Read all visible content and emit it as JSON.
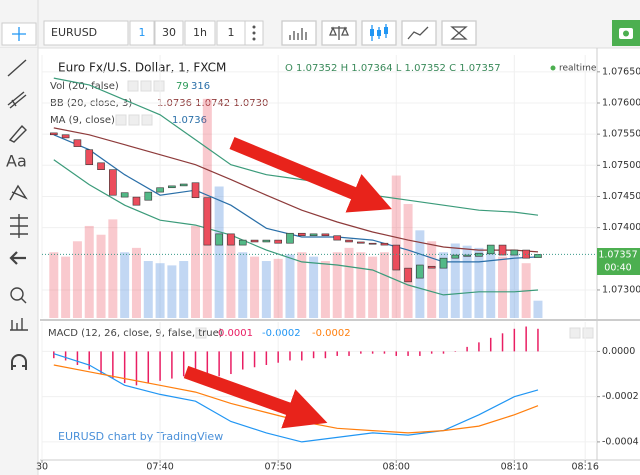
{
  "toolbar": {
    "symbol": "EURUSD",
    "intervals": [
      "1",
      "30",
      "1h",
      "1"
    ]
  },
  "toolbar_left": {
    "text_tool": "Aa"
  },
  "legend": {
    "title": "Euro Fx/U.S. Dollar, 1, FXCM",
    "ohlc": "O 1.07352 H 1.07364 L 1.07352 C 1.07357",
    "status": "realtime",
    "vol_name": "Vol (20, false)",
    "vol_value": "79",
    "vol_ma": "316",
    "bb_name": "BB (20, close, 3)",
    "bb_values": "1.0736 1.0742 1.0730",
    "ma_name": "MA (9, close)",
    "ma_value": "1.0736",
    "macd_name": "MACD (12, 26, close, 9, false, true)",
    "macd_hist": "0.0001",
    "macd_value": "-0.0002",
    "macd_signal": "-0.0002"
  },
  "watermark": "EURUSD chart by TradingView",
  "last_price": {
    "price": "1.07357",
    "countdown": "00:40"
  },
  "chart_data": [
    {
      "type": "candlestick",
      "up_color": "#53b987",
      "down_color": "#eb4d5c",
      "x": [
        "07:31",
        "07:32",
        "07:33",
        "07:34",
        "07:35",
        "07:36",
        "07:37",
        "07:38",
        "07:39",
        "07:40",
        "07:41",
        "07:42",
        "07:43",
        "07:44",
        "07:45",
        "07:46",
        "07:47",
        "07:48",
        "07:49",
        "07:50",
        "07:51",
        "07:52",
        "07:53",
        "07:54",
        "07:55",
        "07:56",
        "07:57",
        "07:58",
        "07:59",
        "08:00",
        "08:01",
        "08:02",
        "08:03",
        "08:04",
        "08:05",
        "08:06",
        "08:07",
        "08:08",
        "08:09",
        "08:10",
        "08:11",
        "08:12"
      ],
      "open": [
        1.07552,
        1.07549,
        1.07541,
        1.07525,
        1.07504,
        1.07493,
        1.07449,
        1.07449,
        1.07444,
        1.07457,
        1.07464,
        1.07467,
        1.07472,
        1.07448,
        1.07372,
        1.0739,
        1.07372,
        1.0738,
        1.07377,
        1.0738,
        1.07375,
        1.07391,
        1.07387,
        1.0739,
        1.07387,
        1.0738,
        1.07377,
        1.07375,
        1.07375,
        1.07372,
        1.07335,
        1.07319,
        1.07338,
        1.07335,
        1.07351,
        1.07354,
        1.07354,
        1.07358,
        1.07372,
        1.07356,
        1.07364,
        1.07352
      ],
      "close": [
        1.07549,
        1.07544,
        1.0753,
        1.07501,
        1.07493,
        1.07452,
        1.07456,
        1.07436,
        1.07457,
        1.07464,
        1.07467,
        1.0747,
        1.07448,
        1.07372,
        1.0739,
        1.07372,
        1.0738,
        1.07377,
        1.0738,
        1.07375,
        1.07391,
        1.07387,
        1.0739,
        1.07387,
        1.0738,
        1.07377,
        1.07375,
        1.07374,
        1.07372,
        1.07332,
        1.07313,
        1.0734,
        1.07335,
        1.07351,
        1.07356,
        1.07356,
        1.07359,
        1.07372,
        1.07356,
        1.07364,
        1.07351,
        1.07357
      ],
      "volume": {
        "values": [
          300,
          280,
          350,
          420,
          380,
          450,
          300,
          320,
          260,
          250,
          240,
          260,
          420,
          1000,
          600,
          380,
          300,
          280,
          260,
          270,
          290,
          300,
          280,
          260,
          300,
          320,
          300,
          280,
          300,
          650,
          520,
          400,
          350,
          300,
          340,
          330,
          320,
          300,
          280,
          290,
          250,
          79
        ],
        "ylim": [
          0,
          1200
        ]
      },
      "overlay_x": [
        "07:31",
        "07:34",
        "07:37",
        "07:40",
        "07:43",
        "07:46",
        "07:49",
        "07:52",
        "07:55",
        "07:58",
        "08:01",
        "08:04",
        "08:07",
        "08:10",
        "08:12"
      ],
      "overlays": [
        {
          "color": "#3b9b7a",
          "values": [
            1.0764,
            1.07629,
            1.07605,
            1.07581,
            1.07541,
            1.07501,
            1.07485,
            1.07477,
            1.07469,
            1.07452,
            1.07444,
            1.07436,
            1.07428,
            1.07425,
            1.0742
          ]
        },
        {
          "color": "#8e3b3b",
          "values": [
            1.0756,
            1.07549,
            1.07533,
            1.07517,
            1.07501,
            1.07477,
            1.07452,
            1.07428,
            1.07409,
            1.07393,
            1.0738,
            1.07369,
            1.07364,
            1.07364,
            1.07361
          ]
        },
        {
          "color": "#3b9b7a",
          "values": [
            1.07509,
            1.07469,
            1.07436,
            1.07412,
            1.07404,
            1.07388,
            1.07364,
            1.07345,
            1.0734,
            1.07332,
            1.07308,
            1.07292,
            1.07297,
            1.07297,
            1.073
          ]
        },
        {
          "color": "#2a6fa8",
          "values": [
            1.07549,
            1.07525,
            1.07485,
            1.07452,
            1.0746,
            1.07436,
            1.07399,
            1.07385,
            1.07385,
            1.0738,
            1.07364,
            1.07345,
            1.07345,
            1.07351,
            1.07353
          ]
        }
      ],
      "xlim": [
        "07:30",
        "08:17"
      ],
      "xticks": [
        {
          "value": "07:30",
          "label": "30"
        },
        "07:40",
        "07:50",
        "08:00",
        "08:10",
        "08:16"
      ],
      "ylim": [
        1.07255,
        1.07677
      ],
      "yticks": [
        {
          "value": 1.0765,
          "label": "1.07650"
        },
        {
          "value": 1.076,
          "label": "1.07600"
        },
        {
          "value": 1.0755,
          "label": "1.07550"
        },
        {
          "value": 1.075,
          "label": "1.07500"
        },
        {
          "value": 1.0745,
          "label": "1.07450"
        },
        {
          "value": 1.074,
          "label": "1.07400"
        },
        {
          "value": 1.073,
          "label": "1.07300"
        }
      ],
      "grid": true
    },
    {
      "type": "macd",
      "hist_color": "#e91e63",
      "x": [
        "07:31",
        "07:32",
        "07:33",
        "07:34",
        "07:35",
        "07:36",
        "07:37",
        "07:38",
        "07:39",
        "07:40",
        "07:41",
        "07:42",
        "07:43",
        "07:44",
        "07:45",
        "07:46",
        "07:47",
        "07:48",
        "07:49",
        "07:50",
        "07:51",
        "07:52",
        "07:53",
        "07:54",
        "07:55",
        "07:56",
        "07:57",
        "07:58",
        "07:59",
        "08:00",
        "08:01",
        "08:02",
        "08:03",
        "08:04",
        "08:05",
        "08:06",
        "08:07",
        "08:08",
        "08:09",
        "08:10",
        "08:11",
        "08:12"
      ],
      "histogram": [
        -3e-05,
        -4e-05,
        -6e-05,
        -8e-05,
        -0.0001,
        -0.00012,
        -0.00014,
        -0.00015,
        -0.00014,
        -0.00013,
        -0.00012,
        -0.00011,
        -9e-05,
        -0.00012,
        -0.00011,
        -0.0001,
        -8e-05,
        -7e-05,
        -6e-05,
        -5e-05,
        -4e-05,
        -4e-05,
        -3e-05,
        -3e-05,
        -2e-05,
        -2e-05,
        -1e-05,
        -1e-05,
        -1e-05,
        -2e-05,
        -2e-05,
        -2e-05,
        -1e-05,
        -1e-05,
        0,
        2e-05,
        4e-05,
        6e-05,
        8e-05,
        0.0001,
        0.00011,
        0.0001
      ],
      "line_x": [
        "07:31",
        "07:34",
        "07:37",
        "07:40",
        "07:43",
        "07:46",
        "07:49",
        "07:52",
        "07:55",
        "07:58",
        "08:01",
        "08:04",
        "08:07",
        "08:10",
        "08:12"
      ],
      "lines": [
        {
          "color": "#2196f3",
          "values": [
            -1e-05,
            -6e-05,
            -0.00015,
            -0.00019,
            -0.00022,
            -0.00031,
            -0.00036,
            -0.0004,
            -0.00038,
            -0.00036,
            -0.00037,
            -0.00035,
            -0.00028,
            -0.0002,
            -0.00017
          ]
        },
        {
          "color": "#ff7f0e",
          "values": [
            -6e-05,
            -9e-05,
            -0.00012,
            -0.00015,
            -0.00018,
            -0.00023,
            -0.00027,
            -0.00031,
            -0.00034,
            -0.00035,
            -0.00036,
            -0.00035,
            -0.00033,
            -0.00028,
            -0.00024
          ]
        }
      ],
      "xlim": [
        "07:30",
        "08:17"
      ],
      "ylim": [
        -0.00048,
        0.00013
      ],
      "yticks": [
        {
          "value": 0,
          "label": "0.0000"
        },
        {
          "value": -0.0002,
          "label": "-0.0002"
        },
        {
          "value": -0.0004,
          "label": "-0.0004"
        }
      ],
      "grid": true
    }
  ]
}
